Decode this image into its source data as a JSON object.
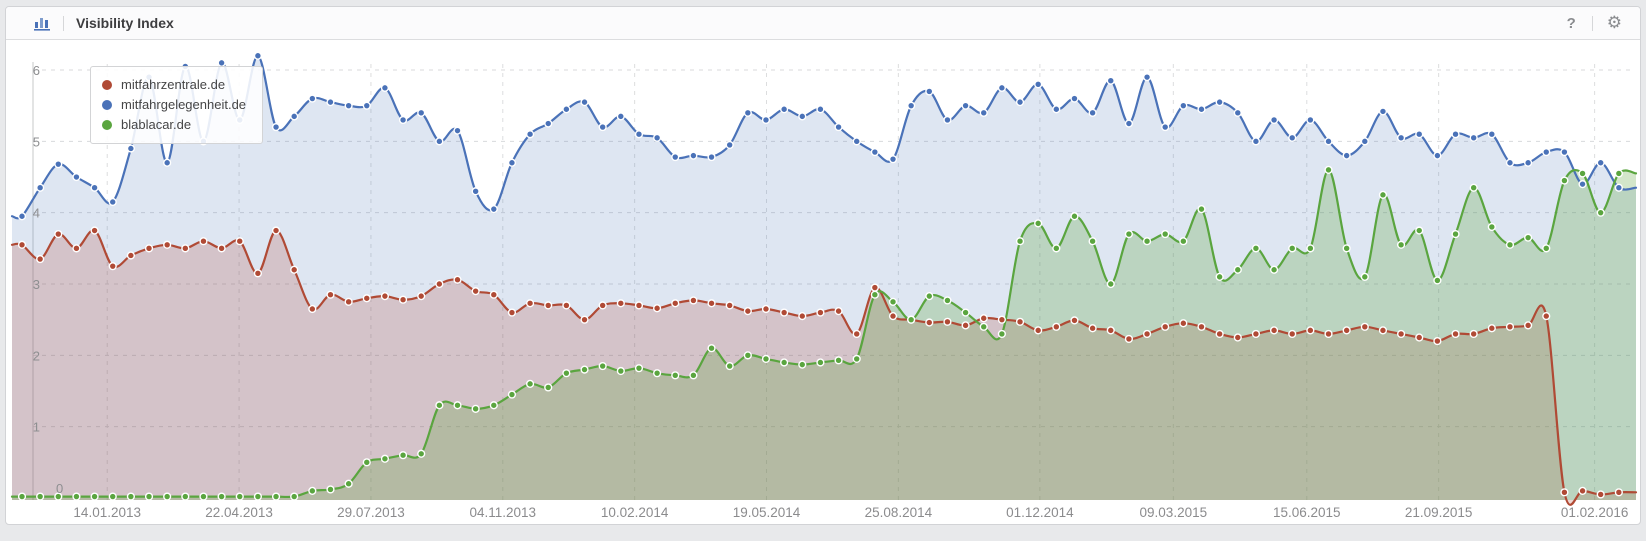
{
  "header": {
    "title": "Visibility Index",
    "help_label": "?"
  },
  "chart_data": {
    "type": "area",
    "title": "Visibility Index",
    "grid": true,
    "legend": {
      "position": "top-left"
    },
    "y_axis": {
      "min": 0,
      "max": 6.3,
      "tick_values": [
        0,
        1,
        2,
        3,
        4,
        5,
        6
      ]
    },
    "x_axis": {
      "tick_labels": [
        "14.01.2013",
        "22.04.2013",
        "29.07.2013",
        "04.11.2013",
        "10.02.2014",
        "19.05.2014",
        "25.08.2014",
        "01.12.2014",
        "09.03.2015",
        "15.06.2015",
        "21.09.2015",
        "01.02.2016"
      ],
      "tick_positions": [
        0.053,
        0.135,
        0.217,
        0.299,
        0.381,
        0.463,
        0.545,
        0.633,
        0.716,
        0.799,
        0.881,
        0.978
      ]
    },
    "series": [
      {
        "name": "mitfahrzentrale.de",
        "color": "#b04a35",
        "fill": "rgba(176,74,53,0.22)",
        "values": [
          3.55,
          3.35,
          3.7,
          3.5,
          3.75,
          3.25,
          3.4,
          3.5,
          3.55,
          3.5,
          3.6,
          3.5,
          3.6,
          3.15,
          3.75,
          3.2,
          2.65,
          2.85,
          2.75,
          2.8,
          2.83,
          2.78,
          2.83,
          3.0,
          3.06,
          2.9,
          2.85,
          2.6,
          2.73,
          2.7,
          2.7,
          2.5,
          2.7,
          2.73,
          2.7,
          2.66,
          2.73,
          2.77,
          2.73,
          2.7,
          2.62,
          2.65,
          2.6,
          2.55,
          2.6,
          2.62,
          2.3,
          2.95,
          2.55,
          2.5,
          2.46,
          2.47,
          2.42,
          2.52,
          2.5,
          2.47,
          2.35,
          2.4,
          2.49,
          2.38,
          2.35,
          2.23,
          2.3,
          2.4,
          2.45,
          2.4,
          2.3,
          2.25,
          2.3,
          2.35,
          2.3,
          2.35,
          2.3,
          2.35,
          2.4,
          2.35,
          2.3,
          2.25,
          2.2,
          2.3,
          2.3,
          2.38,
          2.4,
          2.42,
          2.55,
          0.08,
          0.1,
          0.05,
          0.08
        ]
      },
      {
        "name": "mitfahrgelegenheit.de",
        "color": "#4a72b8",
        "fill": "rgba(74,114,184,0.18)",
        "values": [
          3.95,
          4.35,
          4.68,
          4.5,
          4.35,
          4.15,
          4.9,
          5.9,
          4.7,
          6.05,
          5.0,
          6.1,
          5.3,
          6.2,
          5.2,
          5.35,
          5.6,
          5.55,
          5.5,
          5.5,
          5.75,
          5.3,
          5.4,
          5.0,
          5.15,
          4.3,
          4.05,
          4.7,
          5.1,
          5.25,
          5.45,
          5.55,
          5.2,
          5.35,
          5.1,
          5.05,
          4.78,
          4.8,
          4.78,
          4.95,
          5.4,
          5.3,
          5.45,
          5.35,
          5.45,
          5.2,
          5.0,
          4.85,
          4.75,
          5.5,
          5.7,
          5.3,
          5.5,
          5.4,
          5.75,
          5.55,
          5.8,
          5.45,
          5.6,
          5.4,
          5.85,
          5.25,
          5.9,
          5.2,
          5.5,
          5.45,
          5.55,
          5.4,
          5.0,
          5.3,
          5.05,
          5.3,
          5.0,
          4.8,
          5.0,
          5.42,
          5.05,
          5.1,
          4.8,
          5.1,
          5.05,
          5.1,
          4.7,
          4.7,
          4.85,
          4.85,
          4.4,
          4.7,
          4.35
        ]
      },
      {
        "name": "blablacar.de",
        "color": "#5aa53f",
        "fill": "rgba(96,165,63,0.28)",
        "values": [
          0.02,
          0.02,
          0.02,
          0.02,
          0.02,
          0.02,
          0.02,
          0.02,
          0.02,
          0.02,
          0.02,
          0.02,
          0.02,
          0.02,
          0.02,
          0.02,
          0.1,
          0.12,
          0.2,
          0.5,
          0.55,
          0.6,
          0.62,
          1.3,
          1.3,
          1.25,
          1.3,
          1.45,
          1.6,
          1.55,
          1.75,
          1.8,
          1.85,
          1.78,
          1.82,
          1.75,
          1.72,
          1.72,
          2.1,
          1.85,
          2.0,
          1.95,
          1.9,
          1.87,
          1.9,
          1.93,
          1.95,
          2.85,
          2.75,
          2.5,
          2.83,
          2.77,
          2.6,
          2.4,
          2.3,
          3.6,
          3.85,
          3.5,
          3.95,
          3.6,
          3.0,
          3.7,
          3.6,
          3.7,
          3.6,
          4.05,
          3.1,
          3.2,
          3.5,
          3.2,
          3.5,
          3.5,
          4.6,
          3.5,
          3.1,
          4.25,
          3.55,
          3.75,
          3.05,
          3.7,
          4.35,
          3.8,
          3.55,
          3.65,
          3.5,
          4.45,
          4.55,
          4.0,
          4.55
        ]
      }
    ]
  }
}
